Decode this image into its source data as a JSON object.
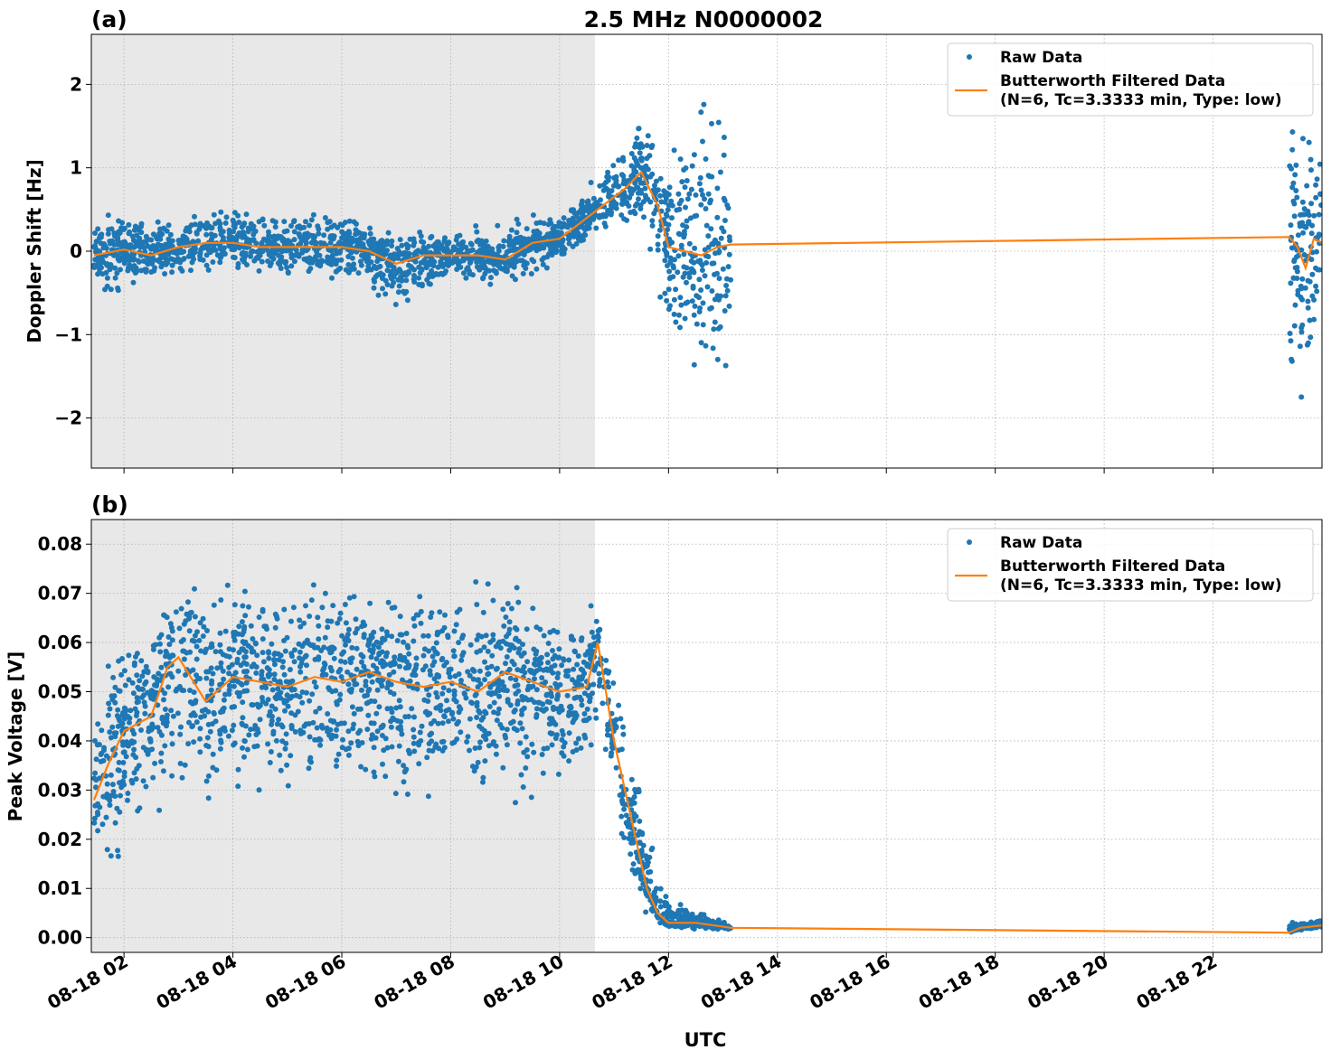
{
  "title": "2.5 MHz N0000002",
  "xlabel": "UTC",
  "colors": {
    "raw": "#1f77b4",
    "filtered": "#ff7f0e",
    "shade": "#e8e8e8",
    "grid": "#b0b0b0"
  },
  "x_ticks": [
    "08-18 02",
    "08-18 04",
    "08-18 06",
    "08-18 08",
    "08-18 10",
    "08-18 12",
    "08-18 14",
    "08-18 16",
    "08-18 18",
    "08-18 20",
    "08-18 22"
  ],
  "legend": {
    "raw": "Raw Data",
    "filtered_line1": "Butterworth Filtered Data",
    "filtered_line2": "(N=6, Tc=3.3333 min, Type: low)"
  },
  "panel_a": {
    "label": "(a)",
    "ylabel": "Doppler Shift [Hz]",
    "y_ticks": [
      "2",
      "1",
      "0",
      "−1",
      "−2"
    ]
  },
  "panel_b": {
    "label": "(b)",
    "ylabel": "Peak Voltage [V]",
    "y_ticks": [
      "0.08",
      "0.07",
      "0.06",
      "0.05",
      "0.04",
      "0.03",
      "0.02",
      "0.01",
      "0.00"
    ]
  },
  "chart_data": [
    {
      "type": "scatter",
      "title": "2.5 MHz N0000002",
      "panel": "(a)",
      "xlabel": "",
      "ylabel": "Doppler Shift [Hz]",
      "x_unit": "UTC hour on 08-18",
      "xlim": [
        1.4,
        24.0
      ],
      "ylim": [
        -2.6,
        2.6
      ],
      "grid": true,
      "legend_position": "top-right",
      "shaded_region_x": [
        1.4,
        10.65
      ],
      "data_gap_x": [
        13.15,
        23.4
      ],
      "series": [
        {
          "name": "Butterworth Filtered Data (N=6, Tc=3.3333 min, Type: low)",
          "kind": "line",
          "x": [
            1.45,
            2.0,
            2.5,
            3.0,
            3.5,
            4.0,
            4.5,
            5.0,
            5.5,
            6.0,
            6.5,
            7.0,
            7.5,
            8.0,
            8.5,
            9.0,
            9.5,
            10.0,
            10.5,
            10.8,
            11.2,
            11.5,
            11.8,
            12.0,
            12.3,
            12.6,
            12.9,
            13.15,
            23.4,
            23.55,
            23.7,
            23.85,
            24.0
          ],
          "y": [
            -0.05,
            0.02,
            -0.05,
            0.05,
            0.1,
            0.1,
            0.05,
            0.05,
            0.05,
            0.05,
            0.0,
            -0.15,
            -0.05,
            -0.05,
            -0.05,
            -0.1,
            0.1,
            0.15,
            0.4,
            0.55,
            0.75,
            0.95,
            0.55,
            0.05,
            0.0,
            -0.05,
            0.05,
            0.08,
            0.17,
            0.05,
            -0.2,
            0.15,
            0.1
          ]
        },
        {
          "name": "Raw Data",
          "kind": "points",
          "envelope_x": [
            1.45,
            2.0,
            3.0,
            4.0,
            5.0,
            6.0,
            7.0,
            8.0,
            9.0,
            10.0,
            10.5,
            11.0,
            11.5,
            11.8,
            12.2,
            12.6,
            13.1,
            23.4,
            24.0
          ],
          "envelope_low": [
            -0.6,
            -0.5,
            -0.4,
            -0.3,
            -0.35,
            -0.45,
            -0.8,
            -0.45,
            -0.4,
            -0.2,
            0.1,
            0.2,
            0.3,
            -0.6,
            -1.5,
            -1.7,
            -1.8,
            -2.3,
            -1.5
          ],
          "envelope_high": [
            0.5,
            0.5,
            0.5,
            0.7,
            0.55,
            0.5,
            0.3,
            0.3,
            0.4,
            0.6,
            0.8,
            1.3,
            1.7,
            1.3,
            1.5,
            2.4,
            1.7,
            1.8,
            1.6
          ]
        }
      ]
    },
    {
      "type": "scatter",
      "panel": "(b)",
      "xlabel": "UTC",
      "ylabel": "Peak Voltage [V]",
      "x_unit": "UTC hour on 08-18",
      "xlim": [
        1.4,
        24.0
      ],
      "ylim": [
        -0.003,
        0.085
      ],
      "grid": true,
      "legend_position": "top-right",
      "shaded_region_x": [
        1.4,
        10.65
      ],
      "data_gap_x": [
        13.15,
        23.4
      ],
      "series": [
        {
          "name": "Butterworth Filtered Data (N=6, Tc=3.3333 min, Type: low)",
          "kind": "line",
          "x": [
            1.45,
            1.7,
            2.0,
            2.5,
            2.8,
            3.0,
            3.5,
            4.0,
            4.5,
            5.0,
            5.5,
            6.0,
            6.5,
            7.0,
            7.5,
            8.0,
            8.5,
            9.0,
            9.5,
            10.0,
            10.5,
            10.7,
            11.0,
            11.3,
            11.6,
            11.8,
            12.0,
            12.5,
            13.15,
            23.4,
            23.6,
            24.0
          ],
          "y": [
            0.028,
            0.035,
            0.042,
            0.045,
            0.055,
            0.057,
            0.048,
            0.053,
            0.052,
            0.051,
            0.053,
            0.052,
            0.054,
            0.052,
            0.051,
            0.052,
            0.05,
            0.054,
            0.052,
            0.05,
            0.051,
            0.06,
            0.04,
            0.025,
            0.01,
            0.005,
            0.003,
            0.003,
            0.002,
            0.001,
            0.002,
            0.0025
          ]
        },
        {
          "name": "Raw Data",
          "kind": "points",
          "envelope_x": [
            1.45,
            2.0,
            3.0,
            4.0,
            5.0,
            6.0,
            7.0,
            8.0,
            9.0,
            10.0,
            10.5,
            10.8,
            11.2,
            11.6,
            12.0,
            12.5,
            13.1,
            23.4,
            24.0
          ],
          "envelope_low": [
            0.01,
            0.015,
            0.02,
            0.022,
            0.025,
            0.025,
            0.022,
            0.025,
            0.025,
            0.028,
            0.035,
            0.035,
            0.015,
            0.004,
            0.002,
            0.0015,
            0.0015,
            0.0015,
            0.0015
          ],
          "envelope_high": [
            0.052,
            0.065,
            0.08,
            0.077,
            0.077,
            0.075,
            0.073,
            0.075,
            0.075,
            0.07,
            0.07,
            0.067,
            0.05,
            0.025,
            0.01,
            0.006,
            0.003,
            0.0035,
            0.004
          ]
        }
      ]
    }
  ]
}
